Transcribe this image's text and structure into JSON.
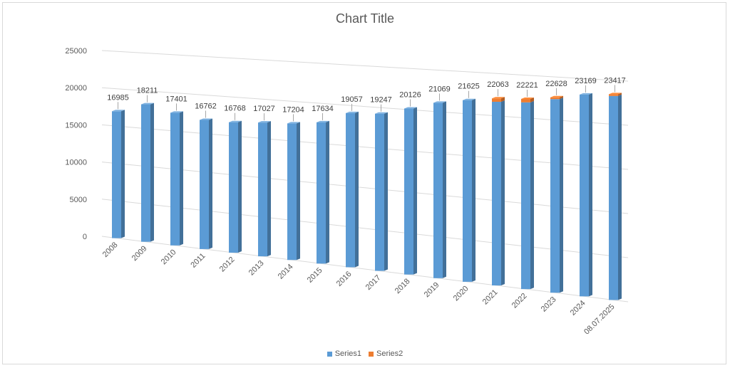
{
  "chart_data": {
    "type": "bar",
    "title": "Chart Title",
    "xlabel": "",
    "ylabel": "",
    "ylim": [
      0,
      25000
    ],
    "yticks": [
      0,
      5000,
      10000,
      15000,
      20000,
      25000
    ],
    "grid": true,
    "legend_position": "bottom",
    "categories": [
      "2008",
      "2009",
      "2010",
      "2011",
      "2012",
      "2013",
      "2014",
      "2015",
      "2016",
      "2017",
      "2018",
      "2019",
      "2020",
      "2021",
      "2022",
      "2023",
      "2024",
      "08.07.2025"
    ],
    "series": [
      {
        "name": "Series1",
        "color": "#5b9bd5",
        "values": [
          16985,
          18211,
          17401,
          16762,
          16768,
          17027,
          17204,
          17634,
          19057,
          19247,
          20126,
          21069,
          21625,
          21663,
          21821,
          22428,
          23169,
          23217
        ]
      },
      {
        "name": "Series2",
        "color": "#ed7d31",
        "values": [
          0,
          0,
          0,
          0,
          0,
          0,
          0,
          0,
          0,
          0,
          0,
          0,
          0,
          400,
          400,
          200,
          0,
          200
        ]
      }
    ],
    "data_labels": [
      "16985",
      "18211",
      "17401",
      "16762",
      "16768",
      "17027",
      "17204",
      "17634",
      "19057",
      "19247",
      "20126",
      "21069",
      "21625",
      "22063",
      "22221",
      "22628",
      "23169",
      "23417"
    ]
  }
}
